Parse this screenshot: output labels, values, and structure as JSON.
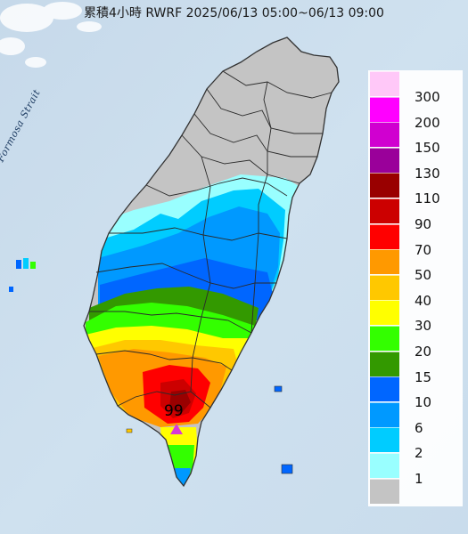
{
  "title": "累積4小時 RWRF 2025/06/13 05:00~06/13 09:00",
  "sea_label": "Formosa Strait",
  "max_value": "99",
  "legend": {
    "items": [
      {
        "label": "300",
        "color": "#ffc8f8"
      },
      {
        "label": "200",
        "color": "#ff00ff"
      },
      {
        "label": "150",
        "color": "#d000d0"
      },
      {
        "label": "130",
        "color": "#9a009a"
      },
      {
        "label": "110",
        "color": "#990000"
      },
      {
        "label": "90",
        "color": "#cc0000"
      },
      {
        "label": "70",
        "color": "#ff0000"
      },
      {
        "label": "50",
        "color": "#ff9900"
      },
      {
        "label": "40",
        "color": "#ffc800"
      },
      {
        "label": "30",
        "color": "#ffff00"
      },
      {
        "label": "20",
        "color": "#33ff00"
      },
      {
        "label": "15",
        "color": "#339900"
      },
      {
        "label": "10",
        "color": "#0066ff"
      },
      {
        "label": "6",
        "color": "#0099ff"
      },
      {
        "label": "2",
        "color": "#00ccff"
      },
      {
        "label": "1",
        "color": "#99ffff"
      },
      {
        "label": "",
        "color": "#c4c4c4"
      }
    ]
  }
}
